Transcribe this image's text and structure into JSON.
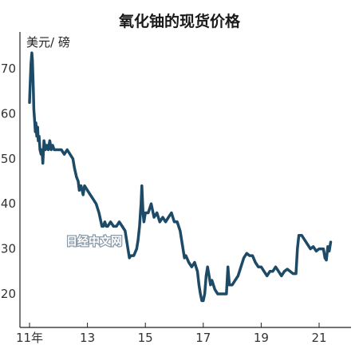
{
  "chart_data": {
    "type": "line",
    "title": "氧化铀的现货价格",
    "unit_label": "美元/ 磅",
    "watermark": "日经中文网",
    "line_color": "#1d4a66",
    "xlim": [
      2011.0,
      2021.75
    ],
    "ylim": [
      15,
      77
    ],
    "yticks": [
      20,
      30,
      40,
      50,
      60,
      70
    ],
    "xticks": [
      {
        "value": 2011,
        "label": "11年"
      },
      {
        "value": 2013,
        "label": "13"
      },
      {
        "value": 2015,
        "label": "15"
      },
      {
        "value": 2017,
        "label": "17"
      },
      {
        "value": 2019,
        "label": "19"
      },
      {
        "value": 2021,
        "label": "21"
      }
    ],
    "series": [
      {
        "x": [
          2011.0,
          2011.02,
          2011.05,
          2011.08,
          2011.1,
          2011.13,
          2011.15,
          2011.17,
          2011.2,
          2011.22,
          2011.25,
          2011.28,
          2011.3,
          2011.33,
          2011.36,
          2011.4,
          2011.43,
          2011.46,
          2011.5,
          2011.55,
          2011.6,
          2011.65,
          2011.7,
          2011.75,
          2011.8,
          2011.85,
          2011.9,
          2012.0,
          2012.1,
          2012.2,
          2012.3,
          2012.4,
          2012.5,
          2012.55,
          2012.62,
          2012.68,
          2012.72,
          2012.78,
          2012.85,
          2012.9,
          2013.0,
          2013.1,
          2013.2,
          2013.3,
          2013.4,
          2013.5,
          2013.55,
          2013.6,
          2013.65,
          2013.7,
          2013.8,
          2013.9,
          2014.0,
          2014.1,
          2014.2,
          2014.3,
          2014.35,
          2014.4,
          2014.45,
          2014.5,
          2014.6,
          2014.7,
          2014.75,
          2014.8,
          2014.85,
          2014.88,
          2014.92,
          2014.95,
          2015.0,
          2015.1,
          2015.2,
          2015.3,
          2015.4,
          2015.5,
          2015.6,
          2015.7,
          2015.8,
          2015.9,
          2016.0,
          2016.1,
          2016.2,
          2016.25,
          2016.3,
          2016.35,
          2016.4,
          2016.5,
          2016.6,
          2016.7,
          2016.8,
          2016.85,
          2016.9,
          2016.95,
          2017.0,
          2017.05,
          2017.1,
          2017.15,
          2017.2,
          2017.25,
          2017.3,
          2017.4,
          2017.5,
          2017.6,
          2017.7,
          2017.8,
          2017.85,
          2017.9,
          2017.95,
          2018.0,
          2018.1,
          2018.2,
          2018.3,
          2018.4,
          2018.5,
          2018.6,
          2018.7,
          2018.8,
          2018.9,
          2019.0,
          2019.1,
          2019.2,
          2019.3,
          2019.4,
          2019.5,
          2019.6,
          2019.7,
          2019.8,
          2019.9,
          2020.0,
          2020.1,
          2020.15,
          2020.2,
          2020.25,
          2020.3,
          2020.4,
          2020.5,
          2020.6,
          2020.7,
          2020.8,
          2020.9,
          2021.0,
          2021.1,
          2021.15,
          2021.2,
          2021.25,
          2021.3,
          2021.35,
          2021.4
        ],
        "y": [
          62.5,
          66,
          71,
          73.5,
          72,
          66,
          61,
          59,
          56,
          58,
          55,
          57,
          54,
          55,
          52,
          51,
          52,
          49,
          54,
          52,
          53,
          52,
          54,
          52,
          53,
          52,
          52,
          52,
          52,
          51,
          52,
          51,
          50,
          48,
          46,
          45,
          43,
          44,
          42,
          44,
          43,
          42,
          41,
          40,
          38,
          35,
          35,
          36,
          35,
          35,
          36,
          35,
          35,
          36,
          35,
          34,
          32,
          30,
          28,
          28.5,
          28.5,
          30,
          32,
          35,
          40,
          44,
          38,
          36,
          38,
          38,
          40,
          37,
          38,
          36,
          37,
          36,
          37,
          38,
          36,
          36,
          34,
          32,
          30,
          28,
          28.5,
          27,
          26,
          27,
          25,
          22,
          20,
          18.5,
          18.5,
          20,
          24,
          26,
          24,
          22,
          23,
          21,
          20,
          20,
          20,
          20,
          26,
          22,
          22,
          22,
          23,
          24,
          26,
          28,
          29,
          28.5,
          28.5,
          27,
          26,
          26,
          25,
          24,
          25,
          25,
          26,
          25,
          24,
          25,
          25.5,
          25,
          24.5,
          24.5,
          24.5,
          30,
          33,
          33,
          32,
          31,
          30,
          30.5,
          29.5,
          30,
          30,
          30,
          28,
          27.5,
          30.5,
          29.5,
          31.5
        ]
      }
    ]
  }
}
